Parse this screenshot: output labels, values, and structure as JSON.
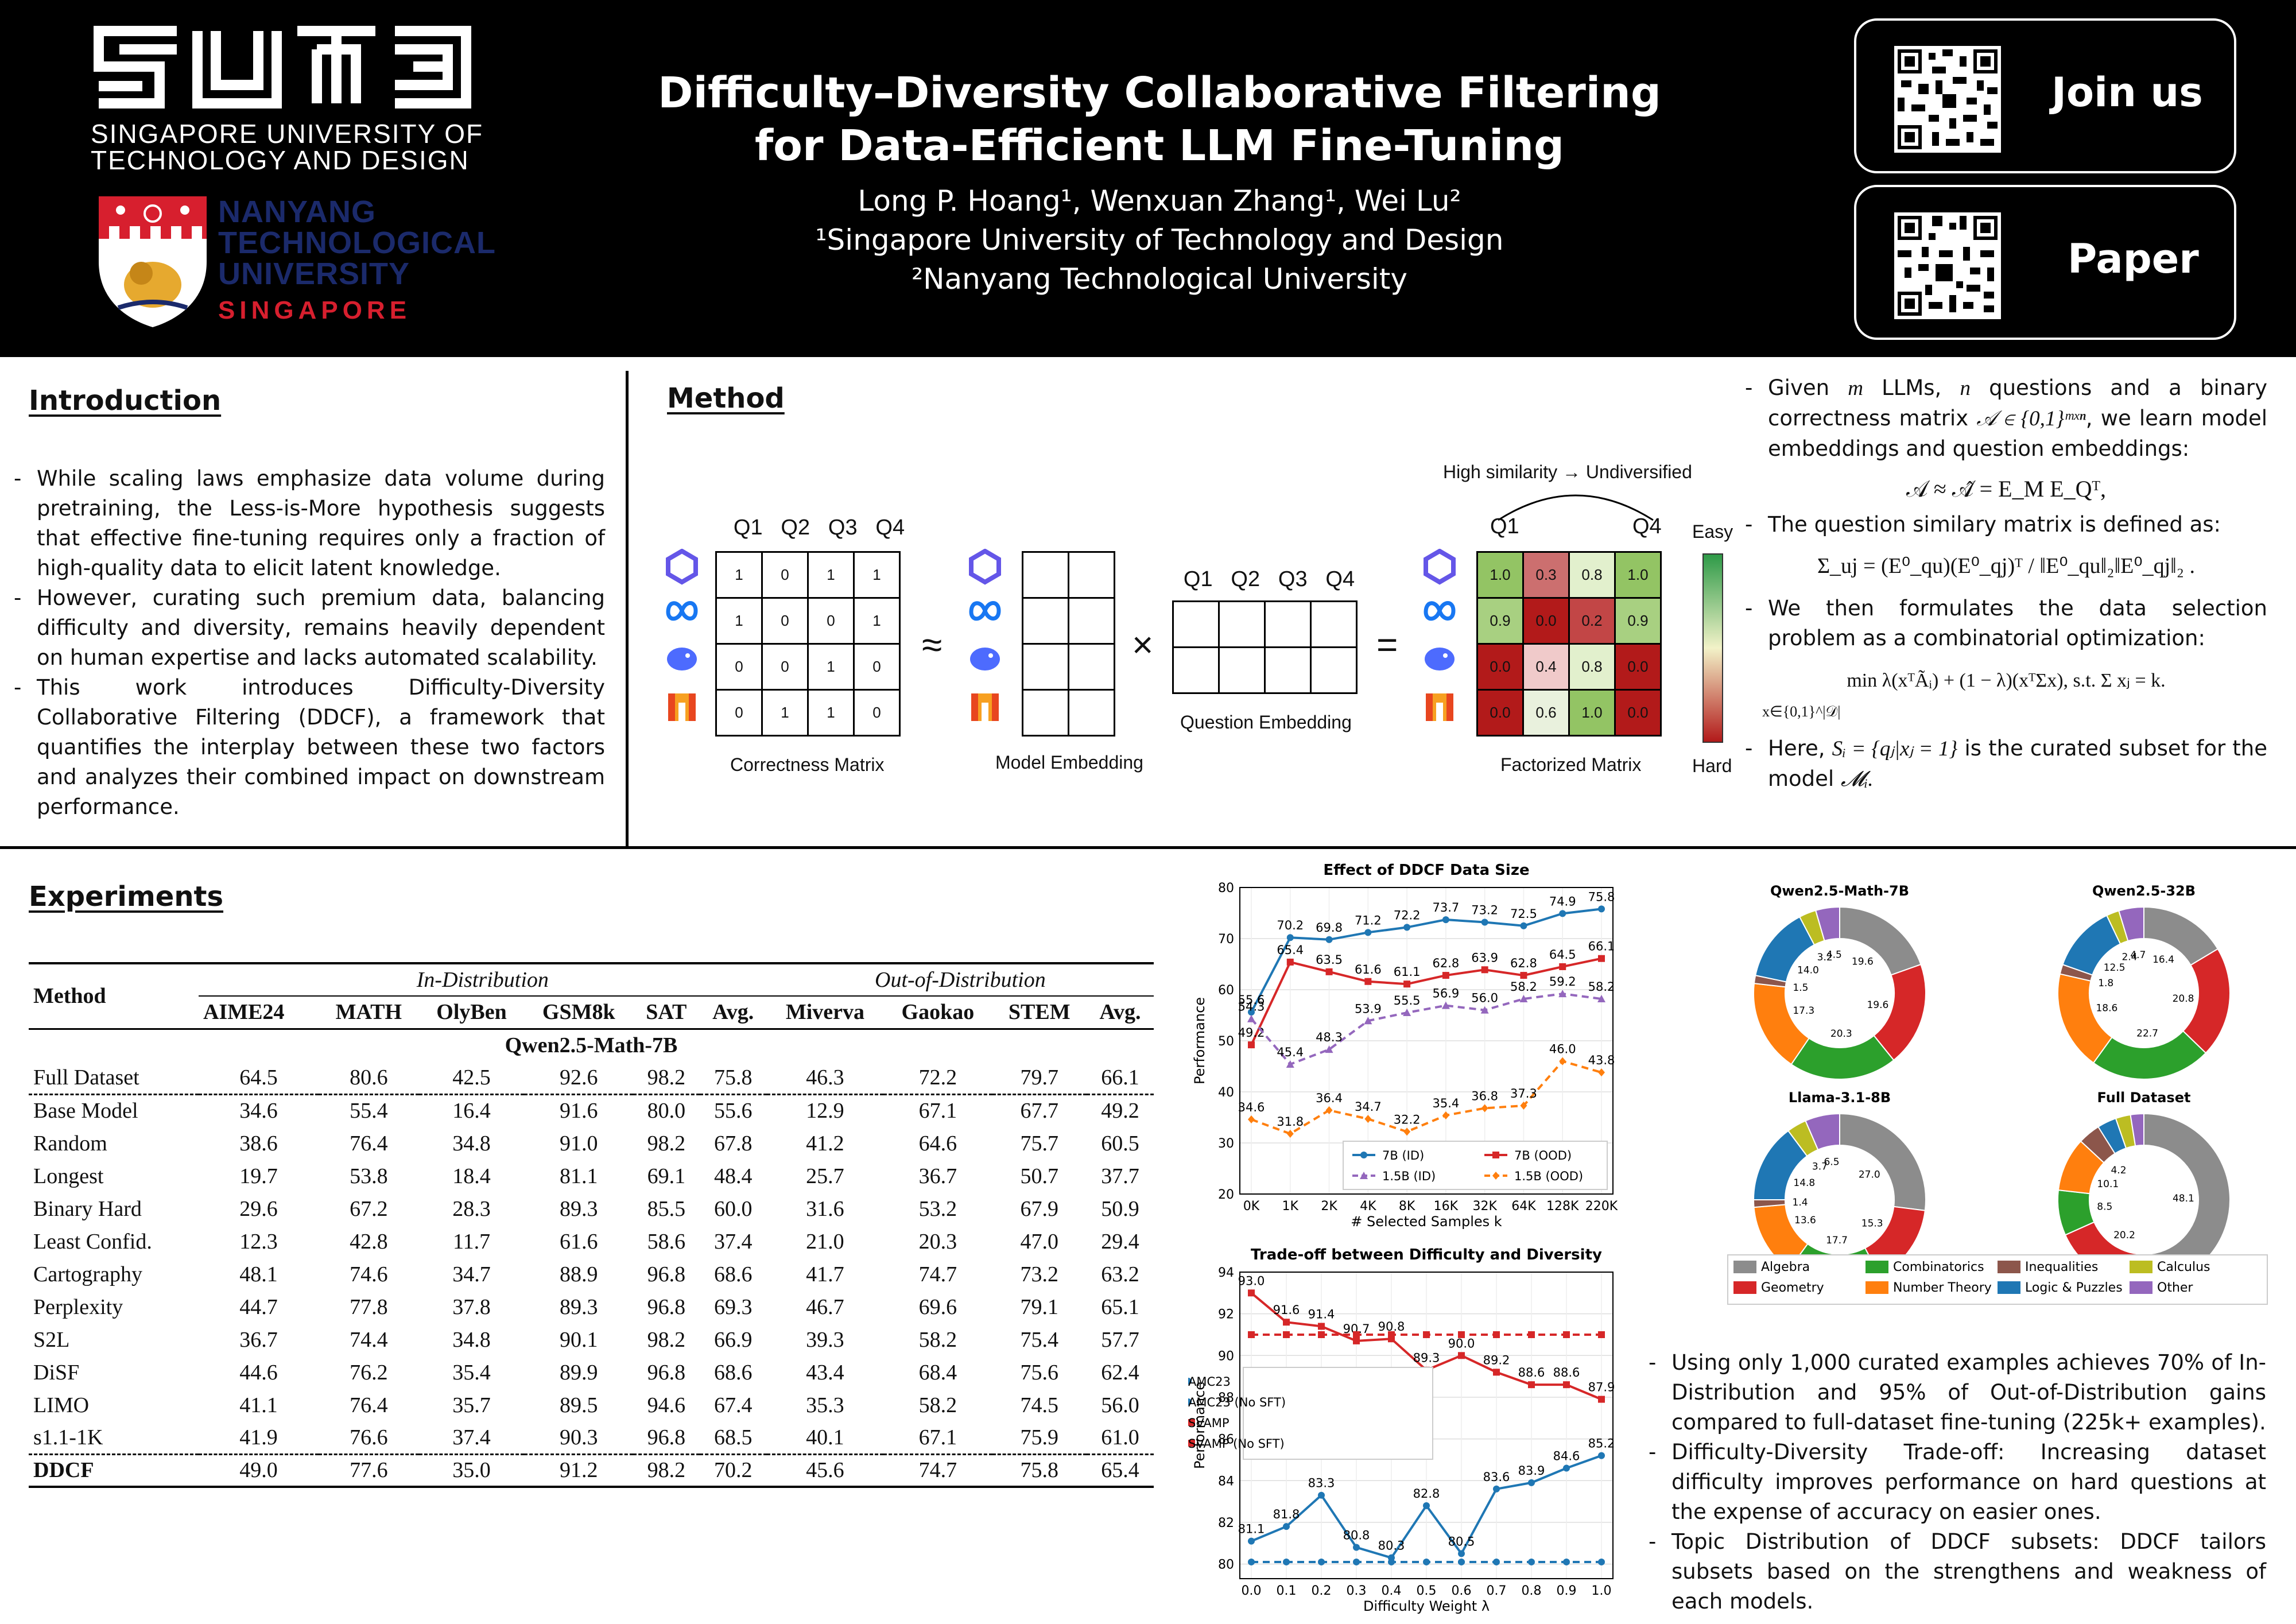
{
  "header": {
    "sutd_name_line1": "SINGAPORE UNIVERSITY OF",
    "sutd_name_line2": "TECHNOLOGY AND DESIGN",
    "ntu_line1": "NANYANG",
    "ntu_line2": "TECHNOLOGICAL",
    "ntu_line3": "UNIVERSITY",
    "ntu_line4": "SINGAPORE",
    "title_line1": "Difficulty–Diversity Collaborative Filtering",
    "title_line2": "for Data-Efficient LLM Fine-Tuning",
    "authors": "Long P. Hoang¹, Wenxuan Zhang¹, Wei Lu²",
    "affil1": "¹Singapore University of Technology and Design",
    "affil2": "²Nanyang Technological University",
    "join_label": "Join us",
    "paper_label": "Paper"
  },
  "intro": {
    "title": "Introduction",
    "bullets": [
      "While scaling laws emphasize data volume during pretraining, the Less-is-More hypothesis suggests that effective fine-tuning requires only a fraction of high-quality data to elicit latent knowledge.",
      "However, curating such premium data, balancing difficulty and diversity, remains heavily dependent on human expertise and lacks automated scalability.",
      "This work introduces Difficulty-Diversity Collaborative Filtering (DDCF), a framework that quantifies the interplay between these two factors and analyzes their combined impact on downstream performance."
    ]
  },
  "method": {
    "title": "Method",
    "q_headers": [
      "Q1",
      "Q2",
      "Q3",
      "Q4"
    ],
    "correctness": [
      [
        "1",
        "0",
        "1",
        "1"
      ],
      [
        "1",
        "0",
        "0",
        "1"
      ],
      [
        "0",
        "0",
        "1",
        "0"
      ],
      [
        "0",
        "1",
        "1",
        "0"
      ]
    ],
    "correctness_label": "Correctness Matrix",
    "model_emb_label": "Model Embedding",
    "question_emb_label": "Question Embedding",
    "factorized_label": "Factorized Matrix",
    "factorized": [
      [
        "1.0",
        "0.3",
        "0.8",
        "1.0"
      ],
      [
        "0.9",
        "0.0",
        "0.2",
        "0.9"
      ],
      [
        "0.0",
        "0.4",
        "0.8",
        "0.0"
      ],
      [
        "0.0",
        "0.6",
        "1.0",
        "0.0"
      ]
    ],
    "factorized_colors": [
      [
        "#93c464",
        "#cc6f6f",
        "#e2f0cd",
        "#93c464"
      ],
      [
        "#a8d081",
        "#b21a1a",
        "#c24646",
        "#a8d081"
      ],
      [
        "#b21a1a",
        "#f0caca",
        "#e2f0cd",
        "#b21a1a"
      ],
      [
        "#b21a1a",
        "#e9f1dd",
        "#93c464",
        "#b21a1a"
      ]
    ],
    "sim_note": "High similarity → Undiversified",
    "q1": "Q1",
    "q4": "Q4",
    "easy": "Easy",
    "hard": "Hard",
    "approx": "≈",
    "times": "×",
    "equals": "="
  },
  "formulation": {
    "b1_a": "Given",
    "b1_m": "m",
    "b1_b": "LLMs,",
    "b1_n": "n",
    "b1_c": "questions and a binary correctness matrix",
    "b1_matrix": "𝒜 ∈ {0,1}ᵐˣⁿ",
    "b1_d": ", we learn model embeddings and question embeddings:",
    "eq1": "𝒜 ≈ 𝒜̂ = E_M E_Qᵀ,",
    "b2": "The question similary matrix is defined as:",
    "eq2": "Σ_uj = (E⁰_qu)(E⁰_qj)ᵀ / ‖E⁰_qu‖₂‖E⁰_qj‖₂ .",
    "b3": "We then formulates the data selection problem as a combinatorial optimization:",
    "eq3": "min λ(xᵀÃᵢ) + (1 − λ)(xᵀΣx),   s.t. Σ xⱼ = k.",
    "eq3_sub": "x∈{0,1}^|𝒟|",
    "b4_a": "Here,",
    "b4_set": "Sᵢ = {qⱼ|xⱼ = 1}",
    "b4_b": "is the curated subset for the model",
    "b4_model": "𝓜ᵢ."
  },
  "experiments": {
    "title": "Experiments",
    "table": {
      "method_header": "Method",
      "in_dist": "In-Distribution",
      "out_dist": "Out-of-Distribution",
      "columns": [
        "AIME24",
        "MATH",
        "OlyBen",
        "GSM8k",
        "SAT",
        "Avg.",
        "Miverva",
        "Gaokao",
        "STEM",
        "Avg."
      ],
      "group": "Qwen2.5-Math-7B",
      "full": [
        "Full Dataset",
        "64.5",
        "80.6",
        "42.5",
        "92.6",
        "98.2",
        "75.8",
        "46.3",
        "72.2",
        "79.7",
        "66.1"
      ],
      "rows": [
        [
          "Base Model",
          "34.6",
          "55.4",
          "16.4",
          "91.6",
          "80.0",
          "55.6",
          "12.9",
          "67.1",
          "67.7",
          "49.2"
        ],
        [
          "Random",
          "38.6",
          "76.4",
          "34.8",
          "91.0",
          "98.2",
          "67.8",
          "41.2",
          "64.6",
          "75.7",
          "60.5"
        ],
        [
          "Longest",
          "19.7",
          "53.8",
          "18.4",
          "81.1",
          "69.1",
          "48.4",
          "25.7",
          "36.7",
          "50.7",
          "37.7"
        ],
        [
          "Binary Hard",
          "29.6",
          "67.2",
          "28.3",
          "89.3",
          "85.5",
          "60.0",
          "31.6",
          "53.2",
          "67.9",
          "50.9"
        ],
        [
          "Least Confid.",
          "12.3",
          "42.8",
          "11.7",
          "61.6",
          "58.6",
          "37.4",
          "21.0",
          "20.3",
          "47.0",
          "29.4"
        ],
        [
          "Cartography",
          "48.1",
          "74.6",
          "34.7",
          "88.9",
          "96.8",
          "68.6",
          "41.7",
          "74.7",
          "73.2",
          "63.2"
        ],
        [
          "Perplexity",
          "44.7",
          "77.8",
          "37.8",
          "89.3",
          "96.8",
          "69.3",
          "46.7",
          "69.6",
          "79.1",
          "65.1"
        ],
        [
          "S2L",
          "36.7",
          "74.4",
          "34.8",
          "90.1",
          "98.2",
          "66.9",
          "39.3",
          "58.2",
          "75.4",
          "57.7"
        ],
        [
          "DiSF",
          "44.6",
          "76.2",
          "35.4",
          "89.9",
          "96.8",
          "68.6",
          "43.4",
          "68.4",
          "75.6",
          "62.4"
        ],
        [
          "LIMO",
          "41.1",
          "76.4",
          "35.7",
          "89.5",
          "94.6",
          "67.4",
          "35.3",
          "58.2",
          "74.5",
          "56.0"
        ],
        [
          "s1.1-1K",
          "41.9",
          "76.6",
          "37.4",
          "90.3",
          "96.8",
          "68.5",
          "40.1",
          "67.1",
          "75.9",
          "61.0"
        ]
      ],
      "ddcf": [
        "DDCF",
        "49.0",
        "77.6",
        "35.0",
        "91.2",
        "98.2",
        "70.2",
        "45.6",
        "74.7",
        "75.8",
        "65.4"
      ]
    },
    "findings": [
      "Using only 1,000 curated examples achieves 70% of In-Distribution and 95% of Out-of-Distribution gains compared to full-dataset fine-tuning (225k+ examples).",
      "Difficulty-Diversity Trade-off: Increasing dataset difficulty improves performance on hard questions at the expense of accuracy on easier ones.",
      "Topic Distribution of DDCF subsets: DDCF tailors subsets based on the strengthens and weakness of each models."
    ]
  },
  "chart_data": [
    {
      "type": "line",
      "title": "Effect of DDCF Data Size",
      "xlabel": "# Selected Samples k",
      "ylabel": "Performance",
      "categories": [
        "0K",
        "1K",
        "2K",
        "4K",
        "8K",
        "16K",
        "32K",
        "64K",
        "128K",
        "220K"
      ],
      "ylim": [
        20,
        80
      ],
      "yticks": [
        20,
        30,
        40,
        50,
        60,
        70,
        80
      ],
      "grid": true,
      "legend": "bottom-right",
      "series": [
        {
          "name": "7B (ID)",
          "color": "#1f77b4",
          "marker": "circle",
          "dash": false,
          "values": [
            55.6,
            70.2,
            69.8,
            71.2,
            72.2,
            73.7,
            73.2,
            72.5,
            74.9,
            75.8
          ],
          "labels": [
            "55.6",
            "70.2",
            "69.8",
            "71.2",
            "72.2",
            "73.7",
            "73.2",
            "72.5",
            "74.9",
            "75.8"
          ]
        },
        {
          "name": "7B (OOD)",
          "color": "#d62728",
          "marker": "square",
          "dash": false,
          "values": [
            49.2,
            65.4,
            63.5,
            61.6,
            61.1,
            62.8,
            63.9,
            62.8,
            64.5,
            66.1
          ],
          "labels": [
            "49.2",
            "65.4",
            "63.5",
            "61.6",
            "61.1",
            "62.8",
            "63.9",
            "62.8",
            "64.5",
            "66.1"
          ]
        },
        {
          "name": "1.5B (ID)",
          "color": "#9467bd",
          "marker": "triangle",
          "dash": true,
          "values": [
            54.3,
            45.4,
            48.3,
            53.9,
            55.5,
            56.9,
            56.0,
            58.2,
            59.2,
            58.2
          ],
          "labels": [
            "54.3",
            "45.4",
            "48.3",
            "53.9",
            "55.5",
            "56.9",
            "56.0",
            "58.2",
            "59.2",
            "58.2"
          ]
        },
        {
          "name": "1.5B (OOD)",
          "color": "#ff7f0e",
          "marker": "diamond",
          "dash": true,
          "values": [
            34.6,
            31.8,
            36.4,
            34.7,
            32.2,
            35.4,
            36.8,
            37.3,
            46.0,
            43.8
          ],
          "labels": [
            "34.6",
            "31.8",
            "36.4",
            "34.7",
            "32.2",
            "35.4",
            "36.8",
            "37.3",
            "46.0",
            "43.8"
          ]
        }
      ]
    },
    {
      "type": "line",
      "title": "Trade-off between Difficulty and Diversity",
      "xlabel": "Difficulty Weight λ",
      "ylabel": "Performance",
      "x": [
        0.0,
        0.1,
        0.2,
        0.3,
        0.4,
        0.5,
        0.6,
        0.7,
        0.8,
        0.9,
        1.0
      ],
      "xticks": [
        "0.0",
        "0.1",
        "0.2",
        "0.3",
        "0.4",
        "0.5",
        "0.6",
        "0.7",
        "0.8",
        "0.9",
        "1.0"
      ],
      "ylim": [
        79.3,
        94
      ],
      "yticks": [
        80,
        82,
        84,
        86,
        88,
        90,
        92,
        94
      ],
      "grid": true,
      "legend": "middle-left",
      "series": [
        {
          "name": "AMC23",
          "color": "#1f77b4",
          "marker": "circle",
          "dash": false,
          "values": [
            81.1,
            81.8,
            83.3,
            80.8,
            80.3,
            82.8,
            80.5,
            83.6,
            83.9,
            84.6,
            85.2
          ],
          "labels": [
            "81.1",
            "81.8",
            "83.3",
            "80.8",
            "80.3",
            "82.8",
            "80.5",
            "83.6",
            "83.9",
            "84.6",
            "85.2"
          ]
        },
        {
          "name": "AMC23 (No SFT)",
          "color": "#1f77b4",
          "marker": "circle",
          "dash": true,
          "values": [
            80.1,
            80.1,
            80.1,
            80.1,
            80.1,
            80.1,
            80.1,
            80.1,
            80.1,
            80.1,
            80.1
          ]
        },
        {
          "name": "SVAMP",
          "color": "#d62728",
          "marker": "square",
          "dash": false,
          "values": [
            93.0,
            91.6,
            91.4,
            90.7,
            90.8,
            89.3,
            90.0,
            89.2,
            88.6,
            88.6,
            87.9
          ],
          "labels": [
            "93.0",
            "91.6",
            "91.4",
            "90.7",
            "90.8",
            "89.3",
            "90.0",
            "89.2",
            "88.6",
            "88.6",
            "87.9"
          ]
        },
        {
          "name": "SVAMP (No SFT)",
          "color": "#d62728",
          "marker": "square",
          "dash": true,
          "values": [
            91.0,
            91.0,
            91.0,
            91.0,
            91.0,
            91.0,
            91.0,
            91.0,
            91.0,
            91.0,
            91.0
          ]
        }
      ]
    },
    {
      "type": "pie",
      "style": "donut",
      "categories": [
        "Algebra",
        "Geometry",
        "Combinatorics",
        "Number Theory",
        "Inequalities",
        "Logic & Puzzles",
        "Calculus",
        "Other"
      ],
      "colors": [
        "#8c8c8c",
        "#d62728",
        "#2ca02c",
        "#ff7f0e",
        "#8c564b",
        "#1f77b4",
        "#bcbd22",
        "#9467bd"
      ],
      "legend": "bottom",
      "charts": [
        {
          "title": "Qwen2.5-Math-7B",
          "order": [
            0,
            1,
            2,
            3,
            4,
            5,
            6,
            7
          ],
          "values": [
            19.6,
            19.6,
            20.3,
            17.3,
            1.5,
            14.0,
            3.2,
            4.5
          ],
          "labels": [
            "19.6",
            "19.6",
            "20.3",
            "17.3",
            "1.5",
            "14.0",
            "3.2",
            "4.5"
          ]
        },
        {
          "title": "Qwen2.5-32B",
          "order": [
            0,
            1,
            2,
            3,
            4,
            5,
            6,
            7
          ],
          "values": [
            16.4,
            20.8,
            22.7,
            18.6,
            1.8,
            12.5,
            2.4,
            4.7
          ],
          "labels": [
            "16.4",
            "20.8",
            "22.7",
            "18.6",
            "1.8",
            "12.5",
            "2.4",
            "4.7"
          ]
        },
        {
          "title": "Llama-3.1-8B",
          "order": [
            0,
            1,
            2,
            3,
            4,
            5,
            6,
            7
          ],
          "values": [
            27.0,
            15.3,
            17.7,
            13.6,
            1.4,
            14.8,
            3.7,
            6.5
          ],
          "labels": [
            "27.0",
            "15.3",
            "17.7",
            "13.6",
            "1.4",
            "14.8",
            "3.7",
            "6.5"
          ]
        },
        {
          "title": "Full Dataset",
          "order": [
            0,
            1,
            2,
            3,
            4,
            5,
            6,
            7
          ],
          "values": [
            48.1,
            20.2,
            8.5,
            10.1,
            4.2,
            3.6,
            2.8,
            2.5
          ],
          "labels": [
            "48.1",
            "20.2",
            "8.5",
            "10.1",
            "4.2",
            "",
            "",
            ""
          ]
        }
      ]
    }
  ]
}
